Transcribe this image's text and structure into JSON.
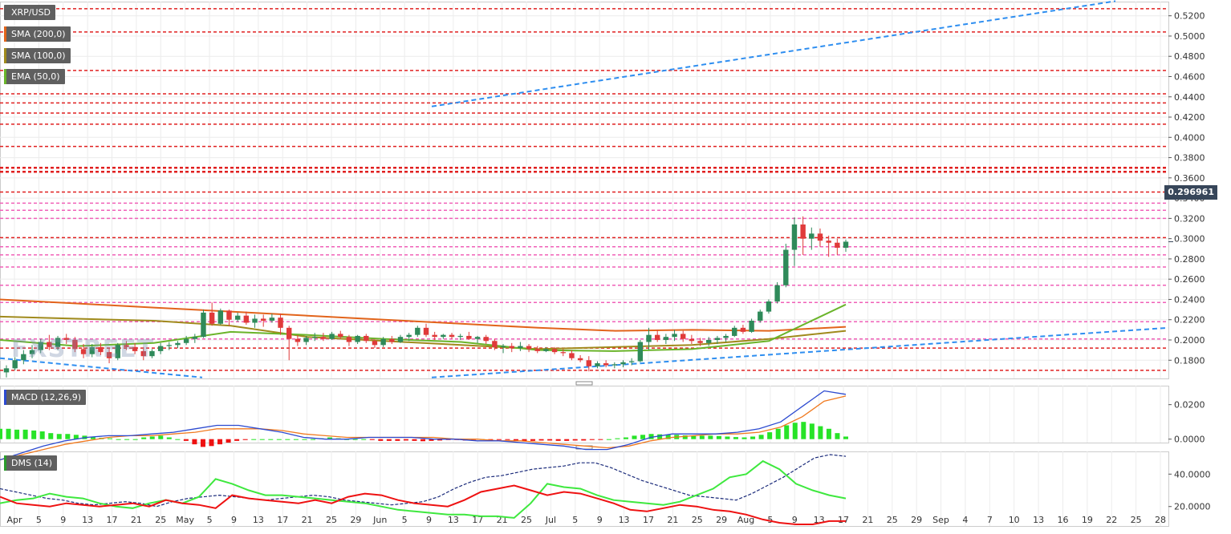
{
  "chart_data": [
    {
      "type": "candlestick",
      "title": "XRP/USD",
      "last_price": "0.296961",
      "ylim": [
        0.162,
        0.534
      ],
      "y_ticks": [
        "0.1800",
        "0.2000",
        "0.2200",
        "0.2400",
        "0.2600",
        "0.2800",
        "0.3000",
        "0.3200",
        "0.3400",
        "0.3600",
        "0.3800",
        "0.4000",
        "0.4200",
        "0.4400",
        "0.4600",
        "0.4800",
        "0.5000",
        "0.5200"
      ],
      "x_ticks": [
        "Apr",
        "5",
        "9",
        "13",
        "17",
        "21",
        "25",
        "May",
        "5",
        "9",
        "13",
        "17",
        "21",
        "25",
        "29",
        "Jun",
        "5",
        "9",
        "13",
        "17",
        "21",
        "25",
        "Jul",
        "5",
        "9",
        "13",
        "17",
        "21",
        "25",
        "29",
        "Aug",
        "5",
        "9",
        "13",
        "17",
        "21",
        "25",
        "29",
        "Sep",
        "4",
        "7",
        "10",
        "13",
        "16",
        "19",
        "22",
        "25",
        "28"
      ],
      "indicators": [
        {
          "name": "SMA (200,0)",
          "color": "#e2641b"
        },
        {
          "name": "SMA (100,0)",
          "color": "#a08a1c"
        },
        {
          "name": "EMA (50,0)",
          "color": "#6ab42a"
        }
      ],
      "candles": [
        [
          0.168,
          0.175,
          0.163,
          0.172
        ],
        [
          0.172,
          0.183,
          0.17,
          0.18
        ],
        [
          0.18,
          0.19,
          0.176,
          0.186
        ],
        [
          0.186,
          0.195,
          0.182,
          0.19
        ],
        [
          0.19,
          0.201,
          0.187,
          0.198
        ],
        [
          0.198,
          0.205,
          0.19,
          0.193
        ],
        [
          0.193,
          0.204,
          0.19,
          0.202
        ],
        [
          0.202,
          0.206,
          0.196,
          0.2
        ],
        [
          0.2,
          0.203,
          0.188,
          0.191
        ],
        [
          0.191,
          0.196,
          0.182,
          0.186
        ],
        [
          0.186,
          0.196,
          0.183,
          0.193
        ],
        [
          0.193,
          0.197,
          0.185,
          0.188
        ],
        [
          0.188,
          0.192,
          0.177,
          0.182
        ],
        [
          0.182,
          0.197,
          0.18,
          0.195
        ],
        [
          0.195,
          0.199,
          0.19,
          0.193
        ],
        [
          0.193,
          0.197,
          0.186,
          0.189
        ],
        [
          0.189,
          0.193,
          0.18,
          0.184
        ],
        [
          0.184,
          0.191,
          0.182,
          0.189
        ],
        [
          0.189,
          0.197,
          0.186,
          0.194
        ],
        [
          0.194,
          0.198,
          0.19,
          0.195
        ],
        [
          0.195,
          0.199,
          0.192,
          0.197
        ],
        [
          0.197,
          0.204,
          0.195,
          0.201
        ],
        [
          0.201,
          0.206,
          0.197,
          0.203
        ],
        [
          0.203,
          0.23,
          0.202,
          0.227
        ],
        [
          0.227,
          0.237,
          0.214,
          0.216
        ],
        [
          0.216,
          0.231,
          0.215,
          0.229
        ],
        [
          0.229,
          0.23,
          0.214,
          0.22
        ],
        [
          0.22,
          0.227,
          0.218,
          0.224
        ],
        [
          0.224,
          0.228,
          0.215,
          0.217
        ],
        [
          0.217,
          0.225,
          0.212,
          0.221
        ],
        [
          0.221,
          0.225,
          0.213,
          0.219
        ],
        [
          0.219,
          0.226,
          0.217,
          0.222
        ],
        [
          0.222,
          0.226,
          0.205,
          0.212
        ],
        [
          0.212,
          0.214,
          0.18,
          0.201
        ],
        [
          0.201,
          0.205,
          0.194,
          0.198
        ],
        [
          0.198,
          0.204,
          0.195,
          0.202
        ],
        [
          0.202,
          0.207,
          0.199,
          0.203
        ],
        [
          0.203,
          0.207,
          0.199,
          0.201
        ],
        [
          0.201,
          0.208,
          0.2,
          0.206
        ],
        [
          0.206,
          0.209,
          0.201,
          0.203
        ],
        [
          0.203,
          0.205,
          0.194,
          0.198
        ],
        [
          0.198,
          0.205,
          0.196,
          0.204
        ],
        [
          0.204,
          0.206,
          0.197,
          0.199
        ],
        [
          0.199,
          0.201,
          0.192,
          0.195
        ],
        [
          0.195,
          0.203,
          0.193,
          0.201
        ],
        [
          0.201,
          0.204,
          0.196,
          0.198
        ],
        [
          0.198,
          0.205,
          0.197,
          0.203
        ],
        [
          0.203,
          0.207,
          0.199,
          0.205
        ],
        [
          0.205,
          0.214,
          0.203,
          0.212
        ],
        [
          0.212,
          0.216,
          0.203,
          0.205
        ],
        [
          0.205,
          0.208,
          0.2,
          0.203
        ],
        [
          0.203,
          0.206,
          0.201,
          0.205
        ],
        [
          0.205,
          0.207,
          0.201,
          0.203
        ],
        [
          0.203,
          0.206,
          0.2,
          0.204
        ],
        [
          0.204,
          0.208,
          0.2,
          0.201
        ],
        [
          0.201,
          0.204,
          0.197,
          0.203
        ],
        [
          0.203,
          0.205,
          0.196,
          0.199
        ],
        [
          0.199,
          0.201,
          0.19,
          0.193
        ],
        [
          0.193,
          0.196,
          0.187,
          0.194
        ],
        [
          0.194,
          0.197,
          0.188,
          0.192
        ],
        [
          0.192,
          0.198,
          0.189,
          0.194
        ],
        [
          0.194,
          0.196,
          0.188,
          0.191
        ],
        [
          0.191,
          0.194,
          0.187,
          0.189
        ],
        [
          0.189,
          0.193,
          0.188,
          0.191
        ],
        [
          0.191,
          0.193,
          0.186,
          0.188
        ],
        [
          0.188,
          0.191,
          0.184,
          0.187
        ],
        [
          0.187,
          0.19,
          0.18,
          0.182
        ],
        [
          0.182,
          0.185,
          0.178,
          0.18
        ],
        [
          0.18,
          0.184,
          0.169,
          0.174
        ],
        [
          0.174,
          0.179,
          0.172,
          0.177
        ],
        [
          0.177,
          0.18,
          0.173,
          0.175
        ],
        [
          0.175,
          0.178,
          0.172,
          0.176
        ],
        [
          0.176,
          0.18,
          0.173,
          0.178
        ],
        [
          0.178,
          0.182,
          0.175,
          0.179
        ],
        [
          0.179,
          0.2,
          0.178,
          0.198
        ],
        [
          0.198,
          0.212,
          0.19,
          0.205
        ],
        [
          0.205,
          0.21,
          0.198,
          0.2
        ],
        [
          0.2,
          0.206,
          0.196,
          0.203
        ],
        [
          0.203,
          0.21,
          0.199,
          0.206
        ],
        [
          0.206,
          0.209,
          0.198,
          0.201
        ],
        [
          0.201,
          0.205,
          0.196,
          0.199
        ],
        [
          0.199,
          0.202,
          0.194,
          0.197
        ],
        [
          0.197,
          0.203,
          0.194,
          0.2
        ],
        [
          0.2,
          0.204,
          0.196,
          0.202
        ],
        [
          0.202,
          0.206,
          0.198,
          0.204
        ],
        [
          0.204,
          0.214,
          0.203,
          0.212
        ],
        [
          0.212,
          0.215,
          0.206,
          0.208
        ],
        [
          0.208,
          0.221,
          0.207,
          0.219
        ],
        [
          0.219,
          0.23,
          0.217,
          0.228
        ],
        [
          0.228,
          0.24,
          0.226,
          0.238
        ],
        [
          0.238,
          0.257,
          0.236,
          0.254
        ],
        [
          0.254,
          0.295,
          0.252,
          0.289
        ],
        [
          0.289,
          0.321,
          0.273,
          0.314
        ],
        [
          0.314,
          0.322,
          0.284,
          0.3
        ],
        [
          0.3,
          0.311,
          0.289,
          0.305
        ],
        [
          0.305,
          0.31,
          0.292,
          0.298
        ],
        [
          0.298,
          0.303,
          0.282,
          0.296
        ],
        [
          0.296,
          0.3,
          0.284,
          0.291
        ],
        [
          0.291,
          0.299,
          0.287,
          0.297
        ]
      ],
      "sma200": [
        0.24,
        0.236,
        0.232,
        0.228,
        0.224,
        0.22,
        0.216,
        0.212,
        0.209,
        0.21,
        0.209,
        0.213
      ],
      "sma100": [
        0.223,
        0.221,
        0.219,
        0.214,
        0.203,
        0.199,
        0.195,
        0.191,
        0.193,
        0.195,
        0.201,
        0.209
      ],
      "ema50": [
        0.2,
        0.194,
        0.197,
        0.208,
        0.205,
        0.201,
        0.198,
        0.19,
        0.189,
        0.191,
        0.199,
        0.235
      ],
      "levels": [
        {
          "y": 0.527,
          "style": "red"
        },
        {
          "y": 0.504,
          "style": "red"
        },
        {
          "y": 0.466,
          "style": "red"
        },
        {
          "y": 0.443,
          "style": "red"
        },
        {
          "y": 0.434,
          "style": "red"
        },
        {
          "y": 0.424,
          "style": "red"
        },
        {
          "y": 0.413,
          "style": "red"
        },
        {
          "y": 0.391,
          "style": "red"
        },
        {
          "y": 0.37,
          "style": "red-bold"
        },
        {
          "y": 0.366,
          "style": "red-bold"
        },
        {
          "y": 0.346,
          "style": "red"
        },
        {
          "y": 0.335,
          "style": "pink"
        },
        {
          "y": 0.328,
          "style": "pink"
        },
        {
          "y": 0.32,
          "style": "pink"
        },
        {
          "y": 0.301,
          "style": "red"
        },
        {
          "y": 0.292,
          "style": "pink"
        },
        {
          "y": 0.284,
          "style": "pink"
        },
        {
          "y": 0.272,
          "style": "pink"
        },
        {
          "y": 0.254,
          "style": "pink"
        },
        {
          "y": 0.237,
          "style": "pink"
        },
        {
          "y": 0.218,
          "style": "pink"
        },
        {
          "y": 0.201,
          "style": "pink"
        },
        {
          "y": 0.192,
          "style": "red"
        },
        {
          "y": 0.17,
          "style": "red"
        }
      ]
    },
    {
      "type": "line",
      "title": "MACD (12,26,9)",
      "ylim": [
        -0.002,
        0.031
      ],
      "y_ticks": [
        "0.0200",
        "0.0000"
      ],
      "macd": [
        -0.012,
        -0.008,
        -0.004,
        -0.001,
        0.001,
        0.002,
        0.002,
        0.003,
        0.004,
        0.006,
        0.008,
        0.008,
        0.006,
        0.004,
        0.001,
        0.0,
        0.0,
        0.001,
        0.001,
        0.001,
        0.0,
        0.0,
        -0.001,
        -0.001,
        -0.002,
        -0.003,
        -0.004,
        -0.006,
        -0.006,
        -0.003,
        0.001,
        0.003,
        0.003,
        0.003,
        0.004,
        0.006,
        0.01,
        0.019,
        0.028,
        0.026
      ],
      "signal": [
        -0.012,
        -0.009,
        -0.006,
        -0.003,
        -0.001,
        0.001,
        0.002,
        0.002,
        0.003,
        0.004,
        0.006,
        0.006,
        0.006,
        0.005,
        0.003,
        0.002,
        0.001,
        0.001,
        0.001,
        0.001,
        0.001,
        0.0,
        0.0,
        -0.001,
        -0.001,
        -0.002,
        -0.003,
        -0.004,
        -0.005,
        -0.004,
        -0.001,
        0.001,
        0.002,
        0.003,
        0.003,
        0.004,
        0.007,
        0.013,
        0.022,
        0.025
      ],
      "histogram": [
        0.006,
        0.006,
        0.0055,
        0.0055,
        0.005,
        0.0045,
        0.0035,
        0.003,
        0.003,
        0.0025,
        0.002,
        0.0012,
        0.0008,
        0.0005,
        0.0,
        0.0,
        0.0,
        0.001,
        0.0015,
        0.002,
        0.001,
        0.0,
        -0.001,
        -0.003,
        -0.0045,
        -0.004,
        -0.003,
        -0.002,
        -0.001,
        -0.0005,
        0.0,
        0.0,
        0.0,
        0.0,
        0.0,
        0.0,
        0.0,
        0.0,
        0.0005,
        0.001,
        0.0005,
        0.0,
        0.0,
        0.0,
        -0.0005,
        -0.001,
        -0.001,
        -0.001,
        -0.0008,
        -0.001,
        -0.0012,
        -0.001,
        -0.0008,
        -0.0005,
        -0.0005,
        -0.0008,
        -0.0005,
        0.0,
        -0.0005,
        -0.0005,
        -0.0005,
        -0.001,
        -0.0012,
        -0.001,
        -0.0008,
        -0.0008,
        -0.001,
        -0.001,
        -0.0008,
        -0.0008,
        -0.0005,
        -0.0003,
        0.0,
        0.0005,
        0.001,
        0.002,
        0.0025,
        0.003,
        0.0028,
        0.0025,
        0.0025,
        0.0022,
        0.0022,
        0.002,
        0.002,
        0.0018,
        0.0015,
        0.0012,
        0.001,
        0.0015,
        0.0025,
        0.004,
        0.006,
        0.008,
        0.0095,
        0.01,
        0.009,
        0.0075,
        0.006,
        0.0035,
        0.0015
      ]
    },
    {
      "type": "line",
      "title": "DMS (14)",
      "ylim": [
        8,
        54
      ],
      "y_ticks": [
        "40.0000",
        "20.0000"
      ],
      "adx": [
        31,
        29,
        27,
        25,
        24,
        22,
        21,
        22,
        23,
        22,
        20,
        23,
        25,
        26,
        27,
        26,
        25,
        24,
        25,
        26,
        27,
        26,
        24,
        23,
        22,
        21,
        22,
        23,
        26,
        31,
        35,
        38,
        39,
        41,
        43,
        44,
        45,
        47,
        47,
        44,
        40,
        36,
        33,
        30,
        27,
        26,
        25,
        24,
        28,
        33,
        38,
        44,
        50,
        52,
        51
      ],
      "plus_di": [
        22,
        24,
        25,
        28,
        26,
        25,
        22,
        20,
        19,
        22,
        24,
        22,
        26,
        37,
        34,
        30,
        27,
        27,
        26,
        25,
        24,
        23,
        22,
        20,
        18,
        17,
        16,
        15,
        15,
        14,
        14,
        13,
        22,
        34,
        32,
        31,
        27,
        24,
        23,
        22,
        21,
        23,
        27,
        31,
        38,
        40,
        48,
        43,
        34,
        30,
        27,
        25
      ],
      "minus_di": [
        26,
        22,
        21,
        20,
        22,
        21,
        20,
        21,
        22,
        20,
        24,
        22,
        21,
        19,
        27,
        25,
        24,
        23,
        22,
        24,
        22,
        26,
        28,
        27,
        24,
        22,
        21,
        20,
        24,
        29,
        31,
        33,
        30,
        27,
        29,
        28,
        25,
        22,
        18,
        17,
        19,
        21,
        20,
        18,
        17,
        15,
        12,
        10,
        9,
        9,
        11,
        11
      ]
    }
  ]
}
